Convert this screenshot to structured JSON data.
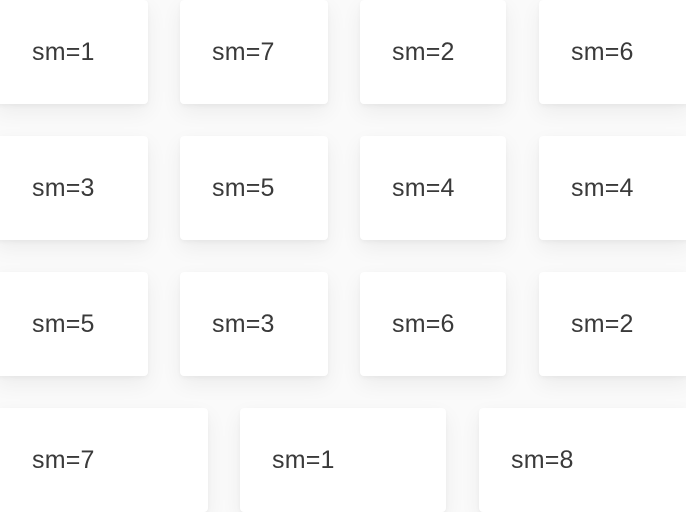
{
  "grid": {
    "rows": [
      {
        "items": [
          {
            "label": "sm=1"
          },
          {
            "label": "sm=7"
          },
          {
            "label": "sm=2"
          },
          {
            "label": "sm=6"
          }
        ]
      },
      {
        "items": [
          {
            "label": "sm=3"
          },
          {
            "label": "sm=5"
          },
          {
            "label": "sm=4"
          },
          {
            "label": "sm=4"
          }
        ]
      },
      {
        "items": [
          {
            "label": "sm=5"
          },
          {
            "label": "sm=3"
          },
          {
            "label": "sm=6"
          },
          {
            "label": "sm=2"
          }
        ]
      },
      {
        "items": [
          {
            "label": "sm=7"
          },
          {
            "label": "sm=1"
          },
          {
            "label": "sm=8"
          }
        ]
      }
    ]
  }
}
